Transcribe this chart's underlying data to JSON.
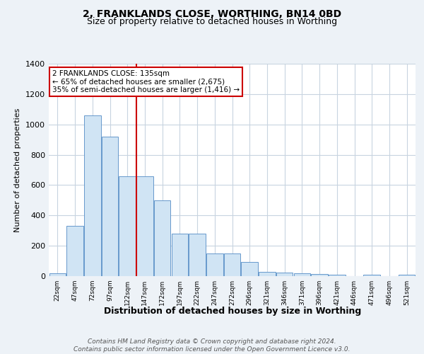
{
  "title": "2, FRANKLANDS CLOSE, WORTHING, BN14 0BD",
  "subtitle": "Size of property relative to detached houses in Worthing",
  "xlabel": "Distribution of detached houses by size in Worthing",
  "ylabel": "Number of detached properties",
  "categories": [
    "22sqm",
    "47sqm",
    "72sqm",
    "97sqm",
    "122sqm",
    "147sqm",
    "172sqm",
    "197sqm",
    "222sqm",
    "247sqm",
    "272sqm",
    "296sqm",
    "321sqm",
    "346sqm",
    "371sqm",
    "396sqm",
    "421sqm",
    "446sqm",
    "471sqm",
    "496sqm",
    "521sqm"
  ],
  "values": [
    20,
    330,
    1060,
    920,
    660,
    660,
    500,
    280,
    280,
    150,
    150,
    95,
    30,
    25,
    20,
    15,
    10,
    0,
    10,
    0,
    10
  ],
  "bar_color": "#d0e4f4",
  "bar_edge_color": "#6699cc",
  "red_line_index": 5,
  "annotation_text": "2 FRANKLANDS CLOSE: 135sqm\n← 65% of detached houses are smaller (2,675)\n35% of semi-detached houses are larger (1,416) →",
  "annotation_box_color": "#ffffff",
  "annotation_box_edge_color": "#cc0000",
  "footer": "Contains HM Land Registry data © Crown copyright and database right 2024.\nContains public sector information licensed under the Open Government Licence v3.0.",
  "ylim": [
    0,
    1400
  ],
  "yticks": [
    0,
    200,
    400,
    600,
    800,
    1000,
    1200,
    1400
  ],
  "bg_color": "#edf2f7",
  "plot_bg_color": "#ffffff",
  "grid_color": "#c8d4e0",
  "title_fontsize": 10,
  "subtitle_fontsize": 9,
  "xlabel_fontsize": 9,
  "ylabel_fontsize": 8,
  "footer_fontsize": 6.5,
  "red_line_color": "#cc0000",
  "ann_fontsize": 7.5
}
